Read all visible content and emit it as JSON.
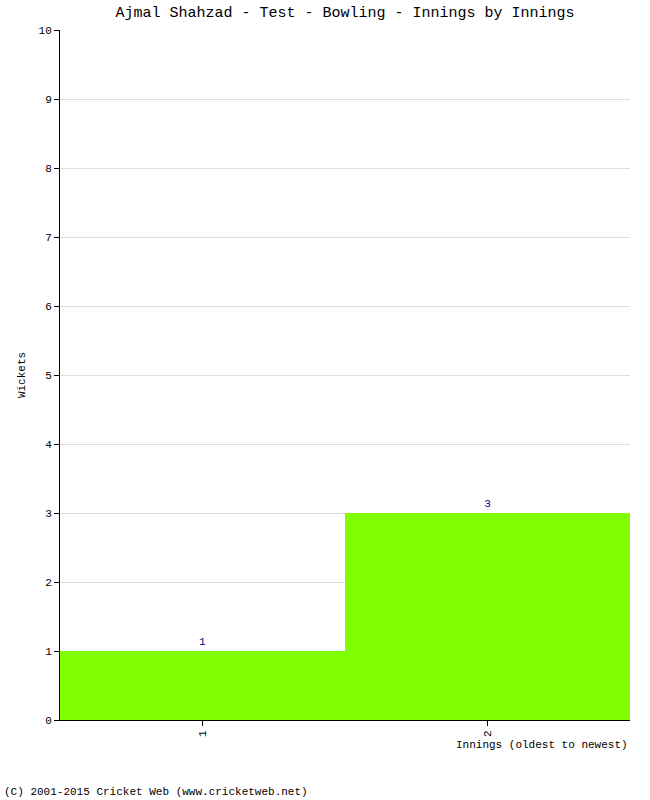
{
  "chart_data": {
    "type": "bar",
    "title": "Ajmal Shahzad - Test - Bowling - Innings by Innings",
    "x_label": "Innings (oldest to newest)",
    "y_label": "Wickets",
    "categories": [
      "1",
      "2"
    ],
    "values": [
      1,
      3
    ],
    "color": "#7fff00",
    "ylim": [
      0,
      10
    ],
    "yticks": [
      0,
      1,
      2,
      3,
      4,
      5,
      6,
      7,
      8,
      9,
      10
    ],
    "grid": true,
    "data_labels": true,
    "annotations": [
      "(C) 2001-2015 Cricket Web (www.cricketweb.net)"
    ]
  }
}
